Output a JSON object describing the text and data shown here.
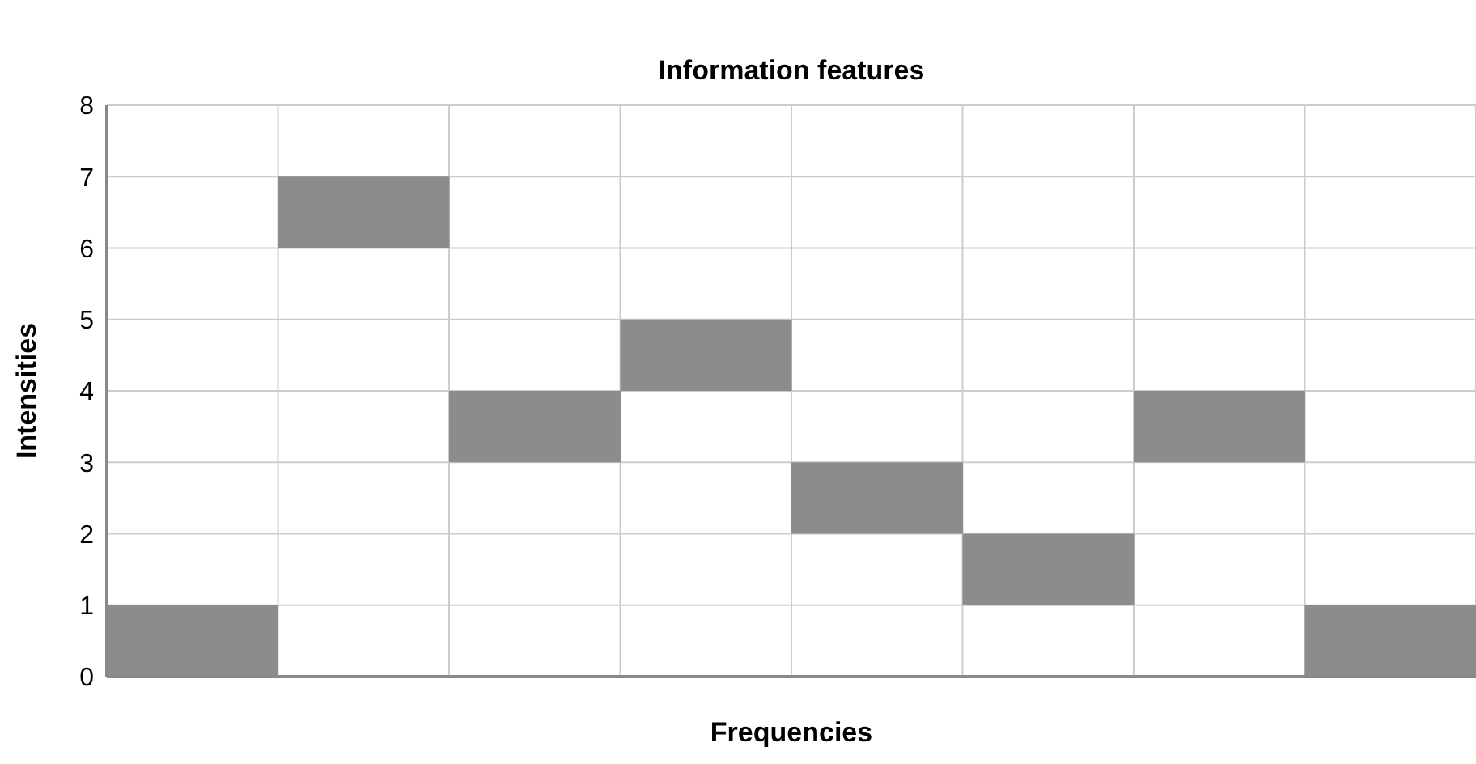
{
  "chart_data": {
    "type": "bar",
    "title": "Information features",
    "xlabel": "Frequencies",
    "ylabel": "Intensities",
    "categories": [
      null,
      null,
      null,
      null,
      null,
      null,
      null,
      null
    ],
    "values": [
      1,
      1,
      1,
      1,
      1,
      1,
      1,
      1
    ],
    "base": [
      0,
      6,
      3,
      4,
      2,
      1,
      3,
      0
    ],
    "color": "#8c8c8c",
    "ylim": [
      0,
      8
    ],
    "yticks": [
      0,
      1,
      2,
      3,
      4,
      5,
      6,
      7,
      8
    ],
    "grid": true,
    "legend": false
  }
}
